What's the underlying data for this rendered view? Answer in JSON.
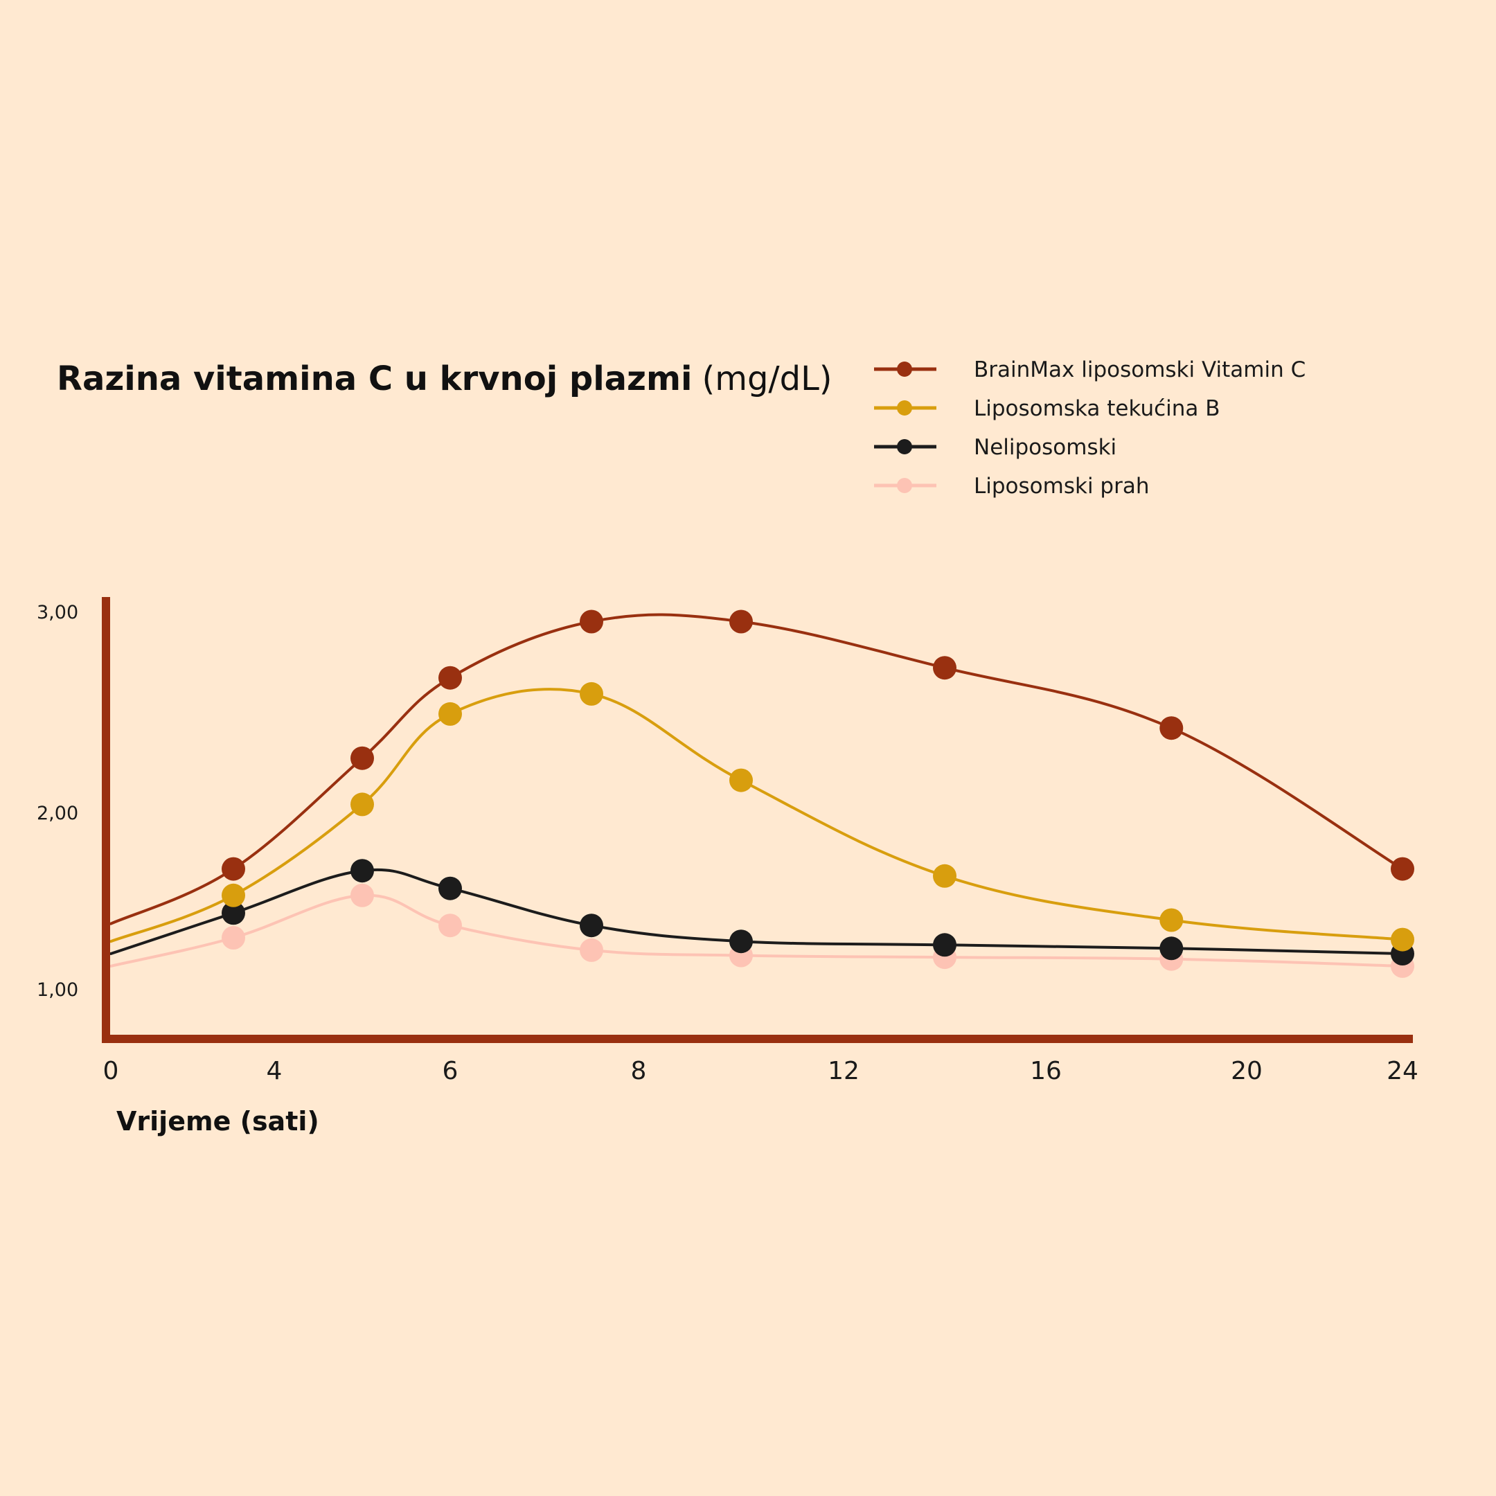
{
  "chart_data": {
    "type": "line",
    "title": "Razina vitamina C u krvnoj plazmi",
    "title_unit": "(mg/dL)",
    "xlabel": "Vrijeme (sati)",
    "ylabel": "",
    "x_tick_labels": [
      "0",
      "4",
      "6",
      "8",
      "12",
      "16",
      "20",
      "24"
    ],
    "y_tick_labels": [
      "3,00",
      "2,00",
      "1,00"
    ],
    "x_tick_values": [
      0,
      4,
      6,
      8,
      12,
      16,
      20,
      24
    ],
    "y_tick_values": [
      3.0,
      2.0,
      1.0
    ],
    "x": [
      3,
      5,
      6,
      7.5,
      10,
      14,
      18.5,
      24
    ],
    "ylim": [
      0.75,
      3.1
    ],
    "grid": false,
    "legend_position": "top-right",
    "series": [
      {
        "name": "BrainMax liposomski Vitamin C",
        "color": "#993010",
        "start_value": 1.37,
        "values": [
          1.68,
          2.27,
          2.67,
          2.95,
          2.95,
          2.72,
          2.42,
          1.68
        ]
      },
      {
        "name": "Liposomska tekućina B",
        "color": "#D89E0E",
        "start_value": 1.27,
        "values": [
          1.53,
          2.04,
          2.49,
          2.59,
          2.16,
          1.64,
          1.39,
          1.28
        ]
      },
      {
        "name": "Neliposomski",
        "color": "#1C1C1C",
        "start_value": 1.2,
        "values": [
          1.43,
          1.67,
          1.57,
          1.36,
          1.27,
          1.25,
          1.23,
          1.2
        ]
      },
      {
        "name": "Liposomski prah",
        "color": "#FDC3B4",
        "start_value": 1.13,
        "values": [
          1.29,
          1.53,
          1.36,
          1.22,
          1.19,
          1.18,
          1.17,
          1.13
        ]
      }
    ]
  },
  "colors": {
    "background": "#FFE9D1",
    "axis": "#993010"
  }
}
